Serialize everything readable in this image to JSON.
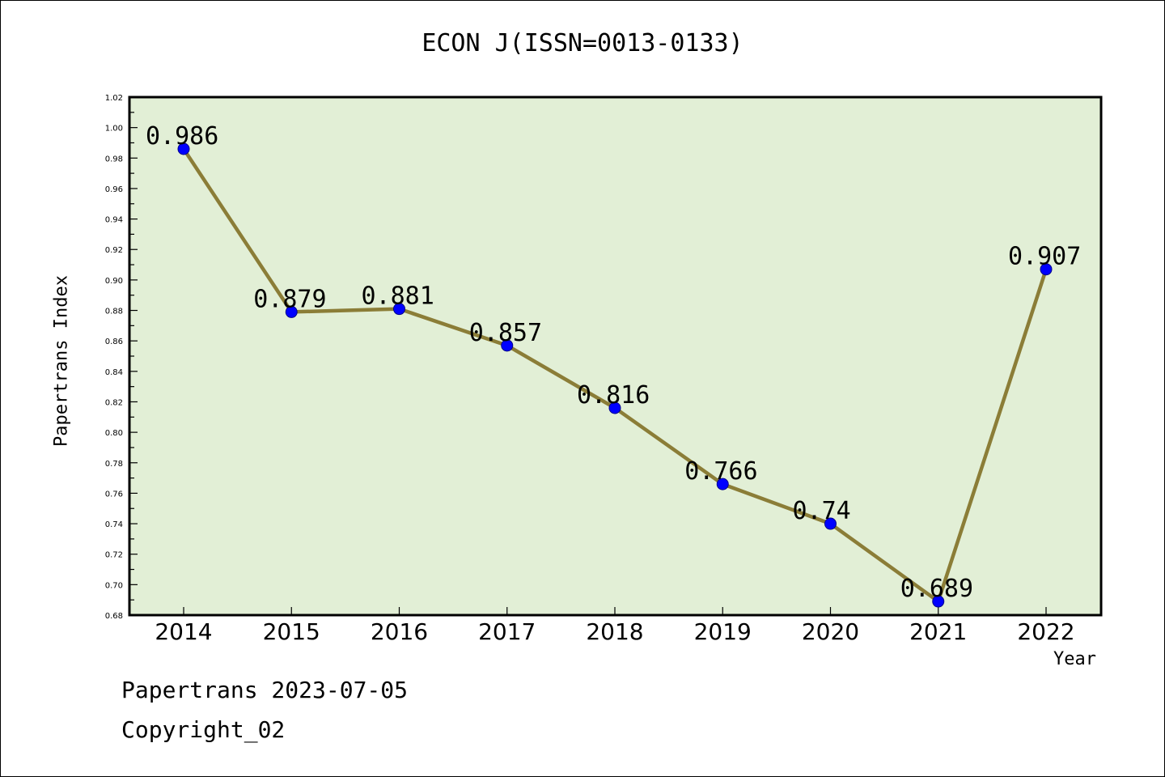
{
  "chart_data": {
    "type": "line",
    "title": "ECON J(ISSN=0013-0133)",
    "xlabel": "Year",
    "ylabel": "Papertrans Index",
    "x": [
      "2014",
      "2015",
      "2016",
      "2017",
      "2018",
      "2019",
      "2020",
      "2021",
      "2022"
    ],
    "values": [
      0.986,
      0.879,
      0.881,
      0.857,
      0.816,
      0.766,
      0.74,
      0.689,
      0.907
    ],
    "data_labels": [
      "0.986",
      "0.879",
      "0.881",
      "0.857",
      "0.816",
      "0.766",
      "0.74",
      "0.689",
      "0.907"
    ],
    "ylim": [
      0.68,
      1.02
    ],
    "yticks": [
      "0.68",
      "0.70",
      "0.72",
      "0.74",
      "0.76",
      "0.78",
      "0.80",
      "0.82",
      "0.84",
      "0.86",
      "0.88",
      "0.90",
      "0.92",
      "0.94",
      "0.96",
      "0.98",
      "1.00",
      "1.02"
    ],
    "grid": false,
    "colors": {
      "plot_background": "#e2efd6",
      "line": "#8b7d37",
      "marker": "#0000ff",
      "axes": "#000000"
    }
  },
  "footer": {
    "line1": "Papertrans 2023-07-05",
    "line2": "Copyright_02"
  }
}
